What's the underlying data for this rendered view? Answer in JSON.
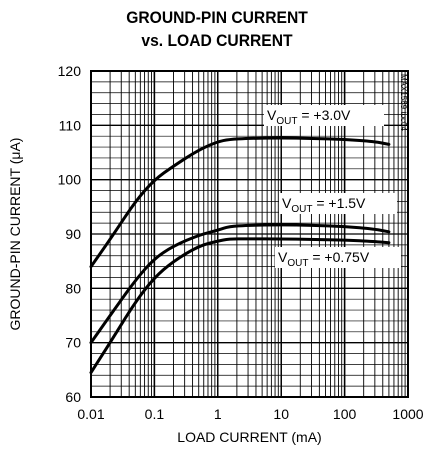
{
  "chart_data": {
    "type": "line",
    "title": "GROUND-PIN CURRENT",
    "subtitle": "vs. LOAD CURRENT",
    "xlabel": "LOAD CURRENT (mA)",
    "ylabel": "GROUND-PIN CURRENT (μA)",
    "x_scale": "log",
    "xlim": [
      0.01,
      1000
    ],
    "ylim": [
      60,
      120
    ],
    "x_ticks": [
      "0.01",
      "0.1",
      "1",
      "10",
      "100",
      "1000"
    ],
    "y_ticks": [
      "60",
      "70",
      "80",
      "90",
      "100",
      "110",
      "120"
    ],
    "grid": true,
    "part_code": "MAX1589 toc04",
    "series": [
      {
        "name": "VOUT = +3.0V",
        "label_main": "V",
        "label_sub": "OUT",
        "label_rest": " = +3.0V",
        "x": [
          0.01,
          0.02,
          0.05,
          0.1,
          0.2,
          0.5,
          1,
          1.5,
          3,
          10,
          30,
          100,
          300,
          500
        ],
        "y": [
          84,
          89,
          96,
          100,
          102.5,
          105.5,
          107,
          107.4,
          107.6,
          107.7,
          107.6,
          107.4,
          107,
          106.5
        ]
      },
      {
        "name": "VOUT = +1.5V",
        "label_main": "V",
        "label_sub": "OUT",
        "label_rest": " = +1.5V",
        "x": [
          0.01,
          0.02,
          0.05,
          0.1,
          0.2,
          0.5,
          1,
          1.5,
          3,
          10,
          30,
          100,
          300,
          500
        ],
        "y": [
          70,
          75,
          81.5,
          85.5,
          87.8,
          89.8,
          90.7,
          91.4,
          91.6,
          91.7,
          91.6,
          91.4,
          90.9,
          90.4
        ]
      },
      {
        "name": "VOUT = +0.75V",
        "label_main": "V",
        "label_sub": "OUT",
        "label_rest": " = +0.75V",
        "x": [
          0.01,
          0.02,
          0.05,
          0.1,
          0.2,
          0.5,
          1,
          1.5,
          3,
          10,
          30,
          100,
          300,
          500
        ],
        "y": [
          64.5,
          70,
          77.5,
          82,
          85,
          87.8,
          88.7,
          89.1,
          89.1,
          89.1,
          89,
          88.9,
          88.6,
          88.4
        ]
      }
    ]
  }
}
